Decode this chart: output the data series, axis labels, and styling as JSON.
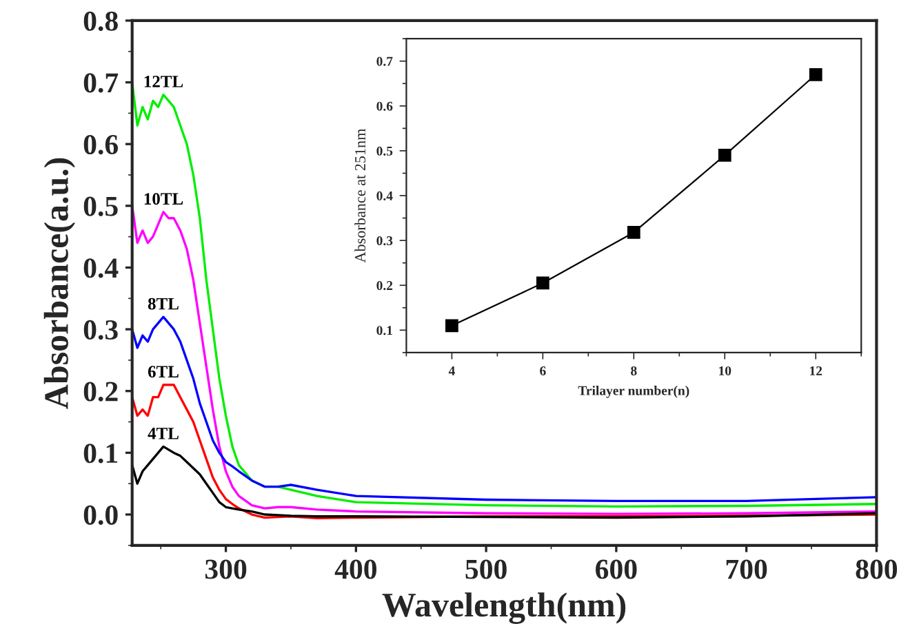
{
  "chart_data": [
    {
      "type": "line",
      "xlabel": "Wavelength(nm)",
      "ylabel": "Absorbance(a.u.)",
      "xlim": [
        228,
        800
      ],
      "ylim": [
        -0.05,
        0.8
      ],
      "xticks": [
        300,
        400,
        500,
        600,
        700,
        800
      ],
      "yticks": [
        {
          "value": 0,
          "label": "0.0"
        },
        {
          "value": 0.1,
          "label": "0.1"
        },
        {
          "value": 0.2,
          "label": "0.2"
        },
        {
          "value": 0.3,
          "label": "0.3"
        },
        {
          "value": 0.4,
          "label": "0.4"
        },
        {
          "value": 0.5,
          "label": "0.5"
        },
        {
          "value": 0.6,
          "label": "0.6"
        },
        {
          "value": 0.7,
          "label": "0.7"
        },
        {
          "value": 0.8,
          "label": "0.8"
        }
      ],
      "grid": false,
      "legend": false,
      "marker": "none",
      "line_style": "solid",
      "x": [
        228,
        232,
        236,
        240,
        244,
        248,
        252,
        256,
        260,
        265,
        270,
        275,
        280,
        285,
        290,
        295,
        300,
        305,
        310,
        320,
        330,
        340,
        350,
        370,
        400,
        500,
        600,
        700,
        800
      ],
      "series": [
        {
          "name": "12TL",
          "color": "#00ee00",
          "values": [
            0.7,
            0.63,
            0.66,
            0.64,
            0.67,
            0.66,
            0.68,
            0.67,
            0.66,
            0.63,
            0.6,
            0.55,
            0.48,
            0.38,
            0.3,
            0.22,
            0.16,
            0.11,
            0.08,
            0.055,
            0.045,
            0.045,
            0.04,
            0.03,
            0.02,
            0.015,
            0.013,
            0.014,
            0.017
          ]
        },
        {
          "name": "10TL",
          "color": "#ff00ff",
          "values": [
            0.5,
            0.44,
            0.46,
            0.44,
            0.45,
            0.47,
            0.49,
            0.48,
            0.48,
            0.46,
            0.43,
            0.38,
            0.31,
            0.24,
            0.17,
            0.11,
            0.07,
            0.045,
            0.03,
            0.015,
            0.01,
            0.012,
            0.012,
            0.008,
            0.005,
            0.002,
            0.001,
            0.002,
            0.005
          ]
        },
        {
          "name": "8TL",
          "color": "#0000ff",
          "values": [
            0.3,
            0.27,
            0.29,
            0.28,
            0.3,
            0.31,
            0.32,
            0.31,
            0.3,
            0.28,
            0.25,
            0.22,
            0.18,
            0.15,
            0.12,
            0.1,
            0.085,
            0.078,
            0.07,
            0.055,
            0.045,
            0.045,
            0.048,
            0.04,
            0.03,
            0.024,
            0.022,
            0.022,
            0.028
          ]
        },
        {
          "name": "6TL",
          "color": "#ff0000",
          "values": [
            0.19,
            0.16,
            0.17,
            0.16,
            0.19,
            0.19,
            0.21,
            0.21,
            0.21,
            0.19,
            0.17,
            0.15,
            0.12,
            0.09,
            0.06,
            0.04,
            0.025,
            0.017,
            0.01,
            0.0,
            -0.005,
            -0.004,
            -0.003,
            -0.006,
            -0.005,
            -0.003,
            -0.003,
            -0.002,
            0.0
          ]
        },
        {
          "name": "4TL",
          "color": "#000000",
          "values": [
            0.08,
            0.05,
            0.07,
            0.08,
            0.09,
            0.1,
            0.11,
            0.105,
            0.1,
            0.095,
            0.085,
            0.075,
            0.065,
            0.05,
            0.035,
            0.02,
            0.012,
            0.01,
            0.008,
            0.005,
            0.0,
            -0.001,
            -0.002,
            -0.003,
            -0.003,
            -0.004,
            -0.005,
            -0.003,
            0.002
          ]
        }
      ]
    },
    {
      "type": "line",
      "xlabel": "Trilayer number(n)",
      "ylabel": "Absorbance at 251nm",
      "xlim": [
        3,
        13
      ],
      "ylim": [
        0.05,
        0.75
      ],
      "xticks": [
        4,
        6,
        8,
        10,
        12
      ],
      "yticks": [
        0.1,
        0.2,
        0.3,
        0.4,
        0.5,
        0.6,
        0.7
      ],
      "grid": false,
      "legend": false,
      "marker": "square",
      "line_style": "solid",
      "x": [
        4,
        6,
        8,
        10,
        12
      ],
      "series": [
        {
          "color": "#000000",
          "values": [
            0.11,
            0.205,
            0.318,
            0.49,
            0.67
          ]
        }
      ]
    }
  ]
}
